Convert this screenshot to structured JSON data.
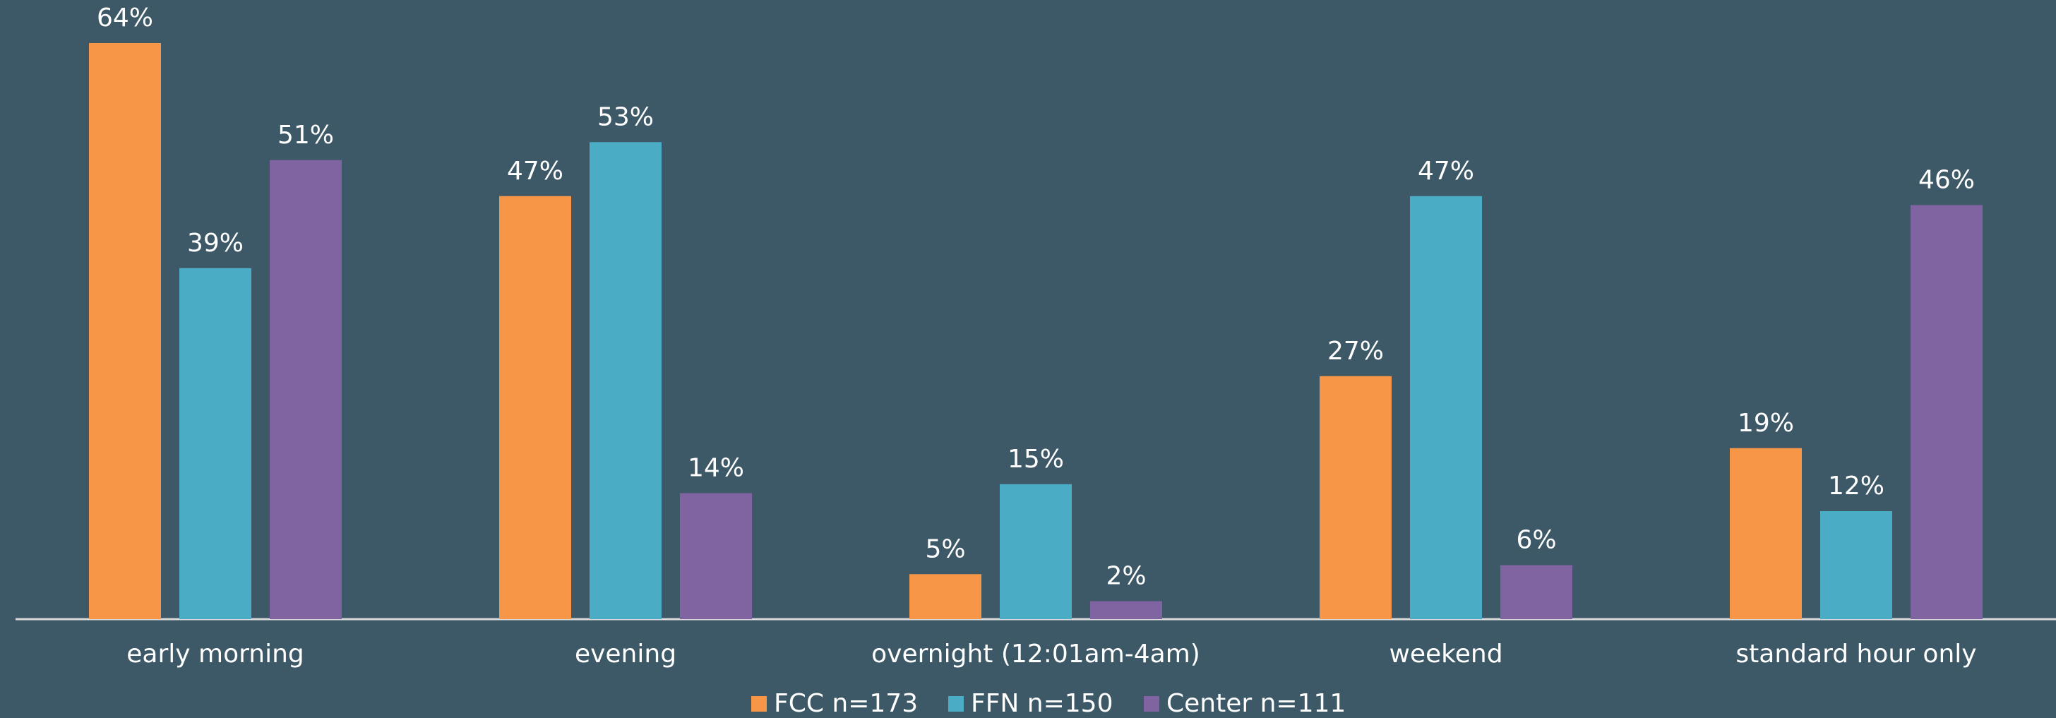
{
  "chart_data": {
    "type": "bar",
    "categories": [
      "early morning",
      "evening",
      "overnight (12:01am-4am)",
      "weekend",
      "standard hour only"
    ],
    "series": [
      {
        "name": "FCC n=173",
        "color": "#f79646",
        "values": [
          64,
          47,
          5,
          27,
          19
        ],
        "value_labels": [
          "64%",
          "47%",
          "5%",
          "27%",
          "19%"
        ]
      },
      {
        "name": "FFN n=150",
        "color": "#4bacc6",
        "values": [
          39,
          53,
          15,
          47,
          12
        ],
        "value_labels": [
          "39%",
          "53%",
          "15%",
          "47%",
          "12%"
        ]
      },
      {
        "name": "Center n=111",
        "color": "#8064a2",
        "values": [
          51,
          14,
          2,
          6,
          46
        ],
        "value_labels": [
          "51%",
          "14%",
          "2%",
          "6%",
          "46%"
        ]
      }
    ],
    "legend": "bottom"
  }
}
